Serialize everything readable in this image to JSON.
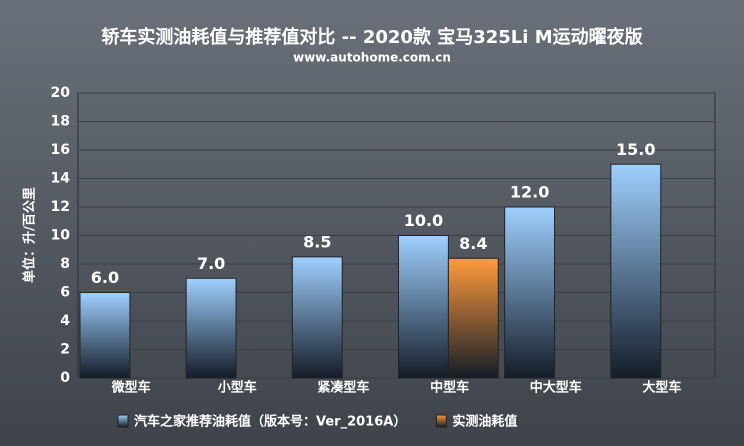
{
  "chart_data": {
    "type": "bar",
    "title": "轿车实测油耗值与推荐值对比 -- 2020款 宝马325Li M运动曜夜版",
    "subtitle": "www.autohome.com.cn",
    "y_label": "单位：升/百公里",
    "categories": [
      "微型车",
      "小型车",
      "紧凑型车",
      "中型车",
      "中大型车",
      "大型车"
    ],
    "series": [
      {
        "name": "汽车之家推荐油耗值（版本号：Ver_2016A）",
        "color": "#9fd0ff",
        "values": [
          6,
          7,
          8.5,
          10,
          12,
          15
        ],
        "value_labels": [
          "6.0",
          "7.0",
          "8.5",
          "10.0",
          "12.0",
          "15.0"
        ]
      },
      {
        "name": "实测油耗值",
        "color": "#ff9a3c",
        "values": [
          null,
          null,
          null,
          8.4,
          null,
          null
        ],
        "value_labels": [
          null,
          null,
          null,
          "8.4",
          null,
          null
        ]
      }
    ],
    "ylim": [
      0,
      20
    ],
    "yticks": [
      0,
      2,
      4,
      6,
      8,
      10,
      12,
      14,
      16,
      18,
      20
    ],
    "grid": true
  }
}
